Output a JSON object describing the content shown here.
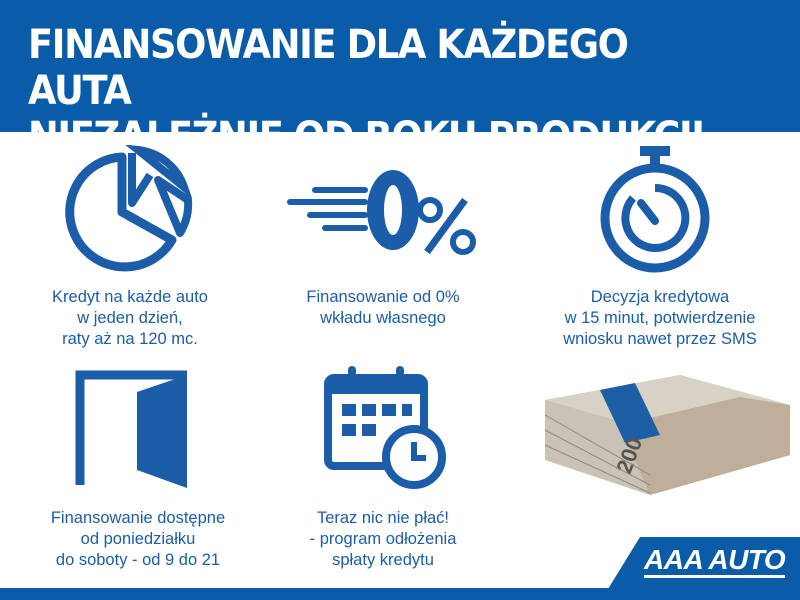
{
  "header": {
    "line1": "FINANSOWANIE DLA KAŻDEGO AUTA",
    "line2": "NIEZALEŻNIE OD ROKU PRODUKCJI"
  },
  "features": [
    {
      "icon": "pie-chart-icon",
      "lines": [
        "Kredyt na każde auto",
        "w jeden dzień,",
        "raty aż na 120 mc."
      ]
    },
    {
      "icon": "zero-percent-icon",
      "lines": [
        "Finansowanie od 0%",
        "wkładu własnego"
      ]
    },
    {
      "icon": "stopwatch-icon",
      "lines": [
        "Decyzja kredytowa",
        "w 15 minut, potwierdzenie",
        "wniosku nawet przez SMS"
      ]
    },
    {
      "icon": "open-door-icon",
      "lines": [
        "Finansowanie dostępne",
        "od poniedziałku",
        "do soboty - od 9 do 21"
      ]
    },
    {
      "icon": "calendar-clock-icon",
      "lines": [
        "Teraz nic nie płać!",
        "- program odłożenia",
        "spłaty kredytu"
      ]
    }
  ],
  "logo": {
    "text": "AAA AUTO"
  },
  "colors": {
    "brand": "#0b5ca8"
  }
}
